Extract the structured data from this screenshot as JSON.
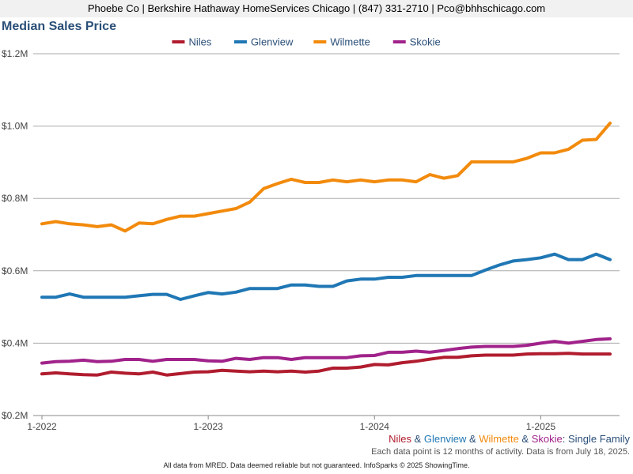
{
  "header": {
    "agent_line": "Phoebe Co | Berkshire Hathaway HomeServices Chicago | (847) 331-2710 | Pco@bhhschicago.com"
  },
  "colors": {
    "title": "#2a4f78",
    "niles": "#b01c2e",
    "glenview": "#1f77b4",
    "wilmette": "#f28a0c",
    "skokie": "#a0228a",
    "grid": "#aaaaaa"
  },
  "subtitle": {
    "niles": "Niles",
    "sep1": " & ",
    "glenview": "Glenview",
    "sep2": " & ",
    "wilmette": "Wilmette",
    "sep3": " & ",
    "skokie": "Skokie",
    "suffix": ": Single Family"
  },
  "note": "Each data point is 12 months of activity. Data is from July 18, 2025.",
  "credit": "All data from MRED. Data deemed reliable but not guaranteed. InfoSparks © 2025 ShowingTime.",
  "chart_data": {
    "type": "line",
    "title": "Median Sales Price",
    "ylim": [
      0.2,
      1.2
    ],
    "yticks": [
      0.2,
      0.4,
      0.6,
      0.8,
      1.0,
      1.2
    ],
    "ytick_labels": [
      "$0.2M",
      "$0.4M",
      "$0.6M",
      "$0.8M",
      "$1.0M",
      "$1.2M"
    ],
    "x_start": "2022-01",
    "x_end": "2025-06",
    "xticks": [
      "2022-01",
      "2023-01",
      "2024-01",
      "2025-01"
    ],
    "xtick_labels": [
      "1-2022",
      "1-2023",
      "1-2024",
      "1-2025"
    ],
    "grid": true,
    "legend_position": "top-center",
    "x": [
      "2022-01",
      "2022-02",
      "2022-03",
      "2022-04",
      "2022-05",
      "2022-06",
      "2022-07",
      "2022-08",
      "2022-09",
      "2022-10",
      "2022-11",
      "2022-12",
      "2023-01",
      "2023-02",
      "2023-03",
      "2023-04",
      "2023-05",
      "2023-06",
      "2023-07",
      "2023-08",
      "2023-09",
      "2023-10",
      "2023-11",
      "2023-12",
      "2024-01",
      "2024-02",
      "2024-03",
      "2024-04",
      "2024-05",
      "2024-06",
      "2024-07",
      "2024-08",
      "2024-09",
      "2024-10",
      "2024-11",
      "2024-12",
      "2025-01",
      "2025-02",
      "2025-03",
      "2025-04",
      "2025-05",
      "2025-06"
    ],
    "series": [
      {
        "name": "Niles",
        "color": "#b01c2e",
        "values": [
          0.315,
          0.318,
          0.315,
          0.313,
          0.312,
          0.32,
          0.317,
          0.315,
          0.32,
          0.312,
          0.316,
          0.32,
          0.321,
          0.325,
          0.323,
          0.321,
          0.323,
          0.321,
          0.323,
          0.32,
          0.323,
          0.331,
          0.331,
          0.334,
          0.341,
          0.34,
          0.346,
          0.35,
          0.356,
          0.361,
          0.361,
          0.365,
          0.367,
          0.367,
          0.367,
          0.37,
          0.371,
          0.371,
          0.372,
          0.37,
          0.37,
          0.37
        ]
      },
      {
        "name": "Glenview",
        "color": "#1f77b4",
        "values": [
          0.527,
          0.527,
          0.536,
          0.527,
          0.527,
          0.527,
          0.527,
          0.531,
          0.535,
          0.535,
          0.521,
          0.531,
          0.54,
          0.536,
          0.541,
          0.551,
          0.551,
          0.551,
          0.561,
          0.561,
          0.557,
          0.557,
          0.572,
          0.577,
          0.577,
          0.582,
          0.582,
          0.587,
          0.587,
          0.587,
          0.587,
          0.587,
          0.602,
          0.616,
          0.627,
          0.631,
          0.636,
          0.646,
          0.631,
          0.631,
          0.646,
          0.631
        ]
      },
      {
        "name": "Wilmette",
        "color": "#f28a0c",
        "values": [
          0.73,
          0.736,
          0.73,
          0.727,
          0.722,
          0.727,
          0.71,
          0.732,
          0.73,
          0.742,
          0.751,
          0.751,
          0.758,
          0.765,
          0.772,
          0.79,
          0.827,
          0.841,
          0.853,
          0.844,
          0.844,
          0.851,
          0.846,
          0.851,
          0.846,
          0.851,
          0.851,
          0.846,
          0.866,
          0.856,
          0.863,
          0.901,
          0.901,
          0.901,
          0.901,
          0.911,
          0.926,
          0.926,
          0.936,
          0.961,
          0.963,
          1.008
        ]
      },
      {
        "name": "Skokie",
        "color": "#a0228a",
        "values": [
          0.345,
          0.349,
          0.35,
          0.353,
          0.349,
          0.35,
          0.355,
          0.355,
          0.35,
          0.355,
          0.355,
          0.355,
          0.351,
          0.35,
          0.358,
          0.355,
          0.36,
          0.36,
          0.355,
          0.36,
          0.36,
          0.36,
          0.36,
          0.365,
          0.366,
          0.375,
          0.375,
          0.378,
          0.375,
          0.38,
          0.385,
          0.389,
          0.391,
          0.391,
          0.391,
          0.394,
          0.4,
          0.405,
          0.4,
          0.405,
          0.41,
          0.412
        ]
      }
    ]
  }
}
